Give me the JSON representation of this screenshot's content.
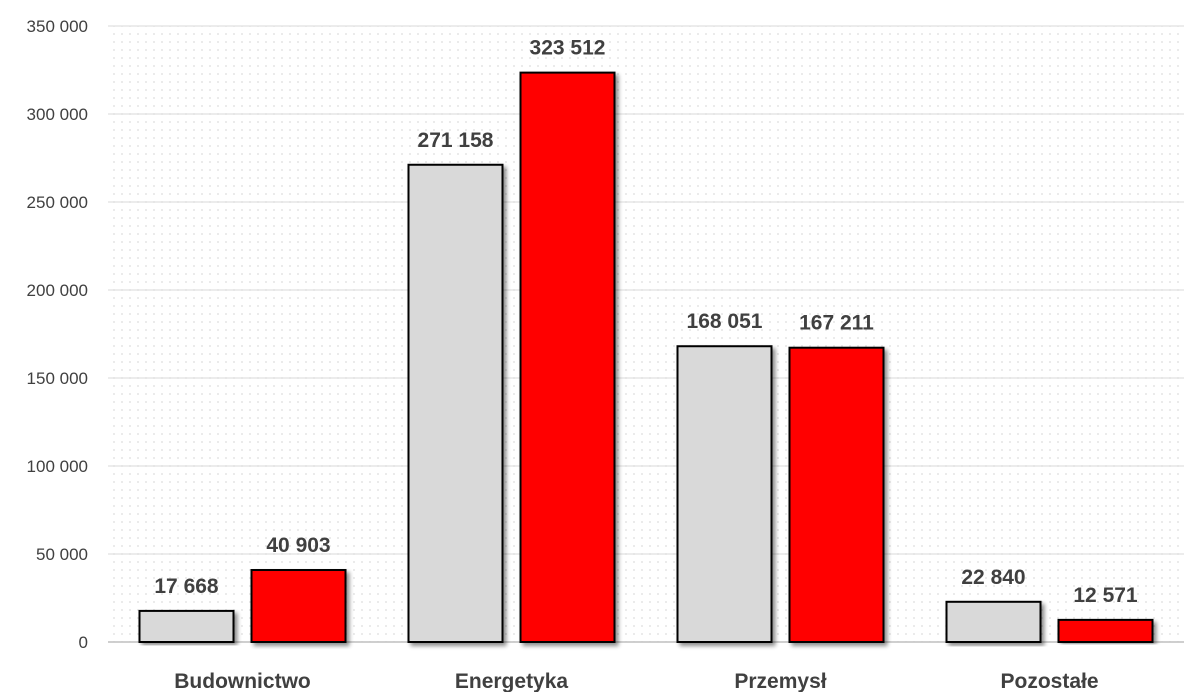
{
  "chart_data": {
    "type": "bar",
    "categories": [
      "Budownictwo",
      "Energetyka",
      "Przemysł",
      "Pozostałe"
    ],
    "series": [
      {
        "values": [
          17668,
          271158,
          168051,
          22840
        ],
        "labels": [
          "17 668",
          "271 158",
          "168 051",
          "22 840"
        ],
        "color": "#d9d9d9"
      },
      {
        "values": [
          40903,
          323512,
          167211,
          12571
        ],
        "labels": [
          "40 903",
          "323 512",
          "167 211",
          "12 571"
        ],
        "color": "#ff0000"
      }
    ],
    "ylim": [
      0,
      350000
    ],
    "yticks": [
      0,
      50000,
      100000,
      150000,
      200000,
      250000,
      300000,
      350000
    ],
    "ytick_labels": [
      "0",
      "50 000",
      "100 000",
      "150 000",
      "200 000",
      "250 000",
      "300 000",
      "350 000"
    ],
    "grid": true,
    "legend": "none"
  }
}
